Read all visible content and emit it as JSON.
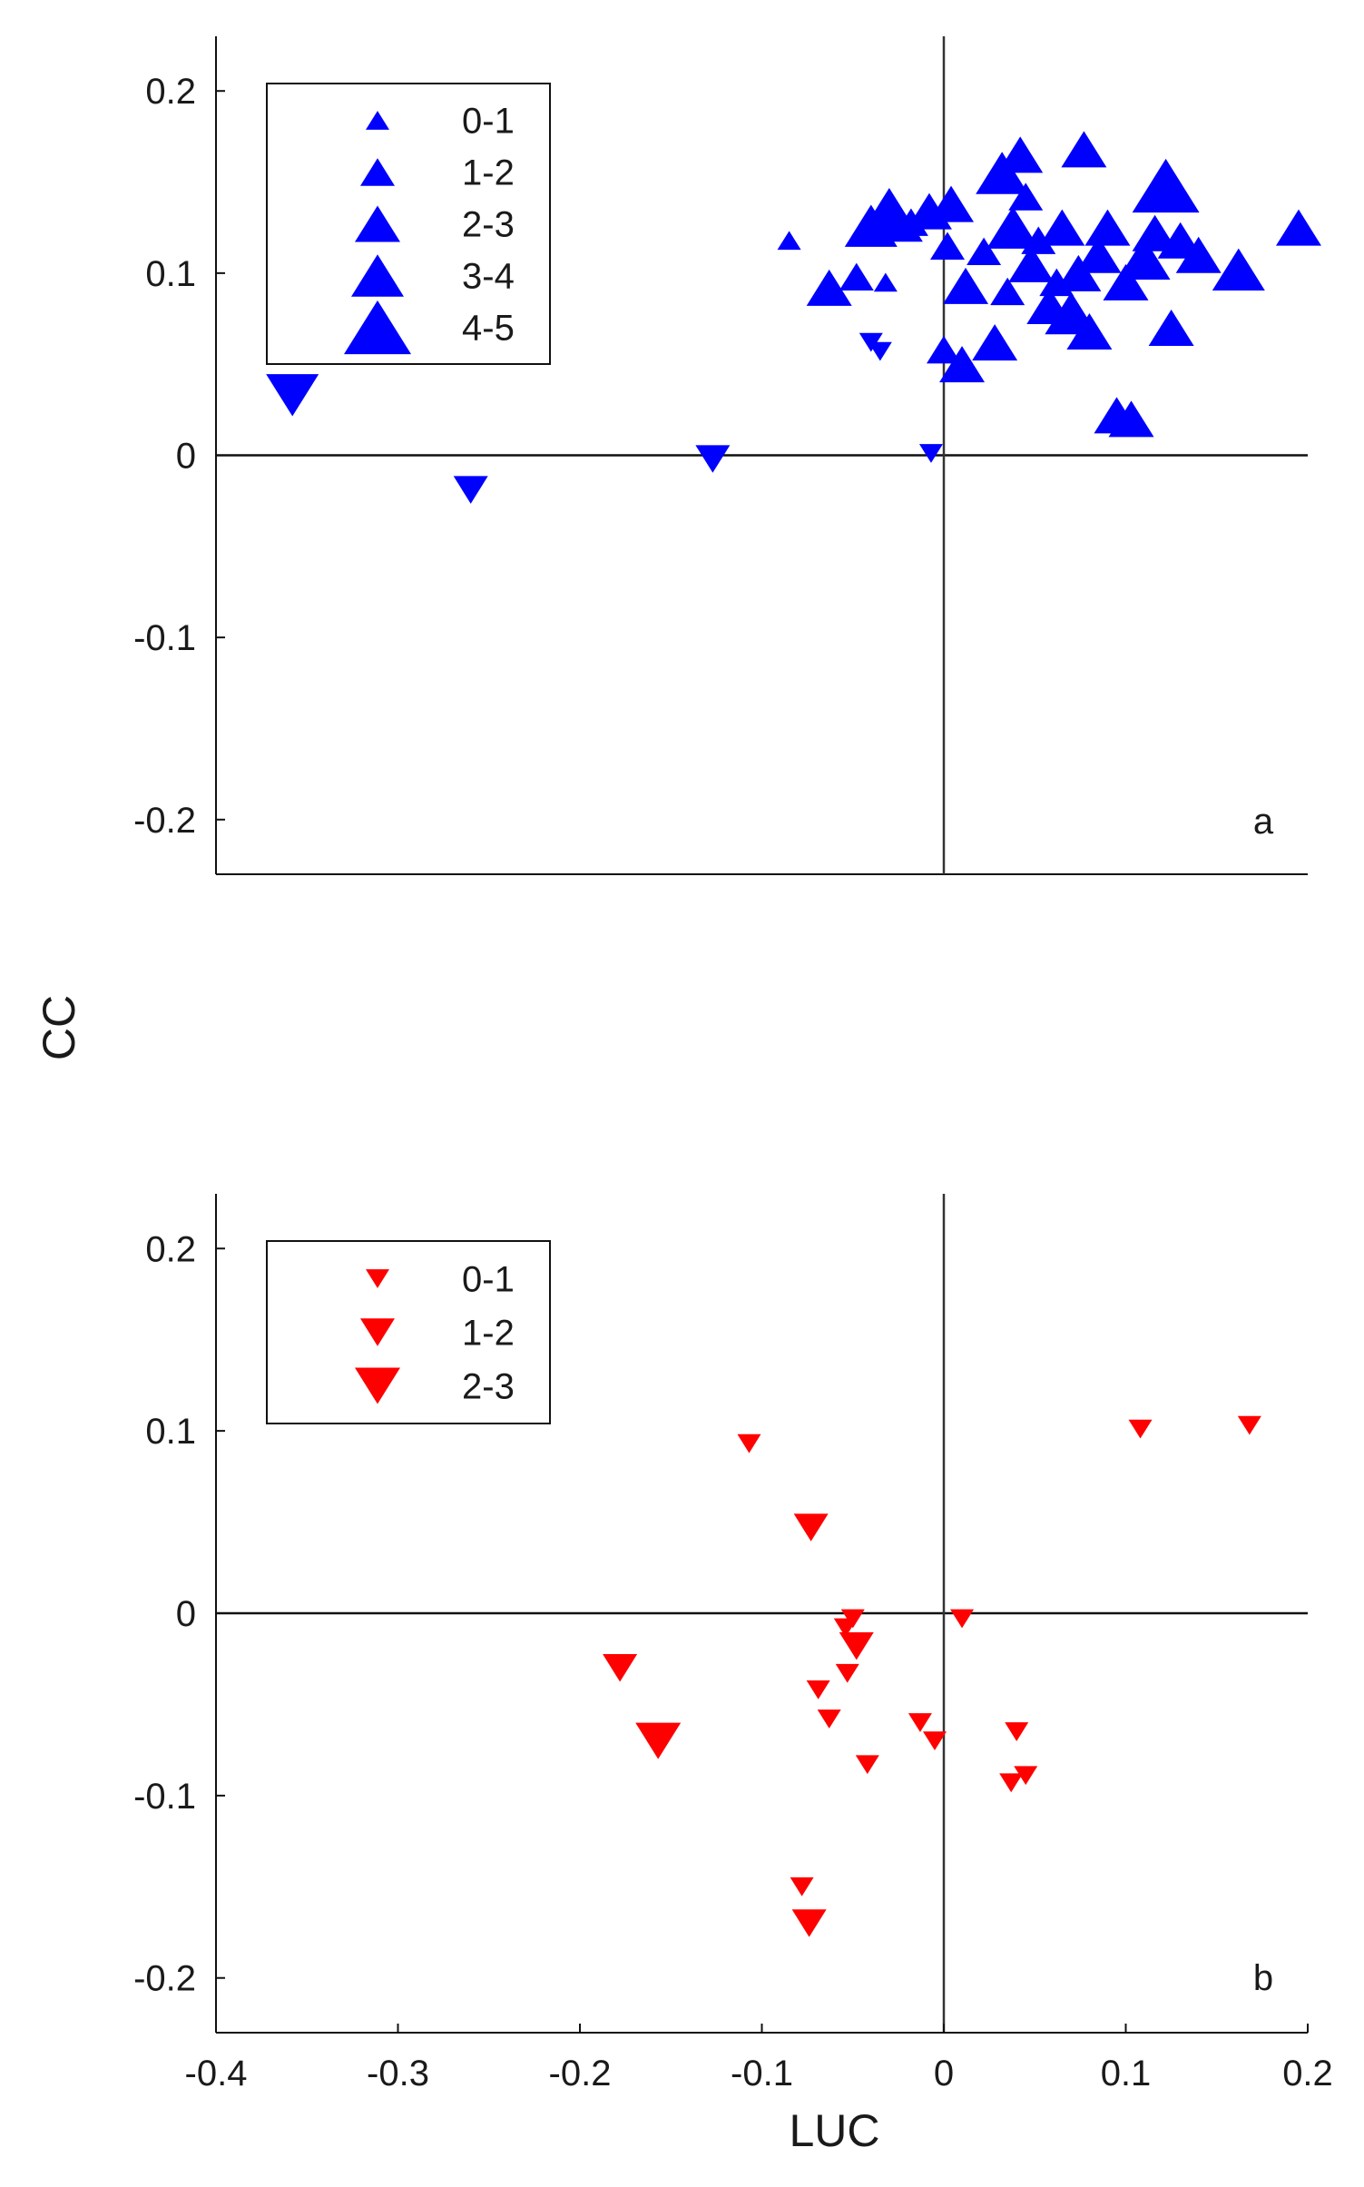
{
  "chart_data": [
    {
      "type": "scatter",
      "panel_label": "a",
      "color": "#0000ff",
      "xlim": [
        -0.4,
        0.2
      ],
      "ylim": [
        -0.23,
        0.23
      ],
      "yticks": [
        "0.2",
        "0.1",
        "0",
        "-0.1",
        "-0.2"
      ],
      "ytick_values": [
        0.2,
        0.1,
        0,
        -0.1,
        -0.2
      ],
      "grid": false,
      "legend_position": "top-left",
      "legend": [
        {
          "label": "0-1",
          "size_class": 1,
          "marker": "triangle-up"
        },
        {
          "label": "1-2",
          "size_class": 2,
          "marker": "triangle-up"
        },
        {
          "label": "2-3",
          "size_class": 3,
          "marker": "triangle-up"
        },
        {
          "label": "3-4",
          "size_class": 4,
          "marker": "triangle-up"
        },
        {
          "label": "4-5",
          "size_class": 5,
          "marker": "triangle-up"
        }
      ],
      "points": [
        {
          "x": -0.358,
          "y": 0.033,
          "size_class": 4,
          "marker": "down"
        },
        {
          "x": -0.26,
          "y": -0.019,
          "size_class": 2,
          "marker": "down"
        },
        {
          "x": -0.127,
          "y": -0.002,
          "size_class": 2,
          "marker": "down"
        },
        {
          "x": -0.007,
          "y": 0.001,
          "size_class": 1,
          "marker": "down"
        },
        {
          "x": -0.04,
          "y": 0.062,
          "size_class": 1,
          "marker": "down"
        },
        {
          "x": -0.035,
          "y": 0.057,
          "size_class": 1,
          "marker": "down"
        },
        {
          "x": -0.085,
          "y": 0.118,
          "size_class": 1,
          "marker": "up"
        },
        {
          "x": -0.063,
          "y": 0.092,
          "size_class": 3,
          "marker": "up"
        },
        {
          "x": -0.048,
          "y": 0.098,
          "size_class": 2,
          "marker": "up"
        },
        {
          "x": -0.032,
          "y": 0.095,
          "size_class": 1,
          "marker": "up"
        },
        {
          "x": -0.04,
          "y": 0.126,
          "size_class": 4,
          "marker": "up"
        },
        {
          "x": -0.03,
          "y": 0.132,
          "size_class": 5,
          "marker": "up"
        },
        {
          "x": -0.018,
          "y": 0.128,
          "size_class": 2,
          "marker": "up"
        },
        {
          "x": -0.008,
          "y": 0.134,
          "size_class": 3,
          "marker": "up"
        },
        {
          "x": 0.004,
          "y": 0.138,
          "size_class": 3,
          "marker": "up"
        },
        {
          "x": 0.002,
          "y": 0.115,
          "size_class": 2,
          "marker": "up"
        },
        {
          "x": 0.0,
          "y": 0.058,
          "size_class": 2,
          "marker": "up"
        },
        {
          "x": 0.01,
          "y": 0.05,
          "size_class": 3,
          "marker": "up"
        },
        {
          "x": 0.012,
          "y": 0.093,
          "size_class": 3,
          "marker": "up"
        },
        {
          "x": 0.022,
          "y": 0.112,
          "size_class": 2,
          "marker": "up"
        },
        {
          "x": 0.028,
          "y": 0.062,
          "size_class": 3,
          "marker": "up"
        },
        {
          "x": 0.032,
          "y": 0.155,
          "size_class": 4,
          "marker": "up"
        },
        {
          "x": 0.035,
          "y": 0.09,
          "size_class": 2,
          "marker": "up"
        },
        {
          "x": 0.038,
          "y": 0.125,
          "size_class": 4,
          "marker": "up"
        },
        {
          "x": 0.042,
          "y": 0.165,
          "size_class": 3,
          "marker": "up"
        },
        {
          "x": 0.045,
          "y": 0.142,
          "size_class": 2,
          "marker": "up"
        },
        {
          "x": 0.048,
          "y": 0.105,
          "size_class": 3,
          "marker": "up"
        },
        {
          "x": 0.052,
          "y": 0.118,
          "size_class": 2,
          "marker": "up"
        },
        {
          "x": 0.058,
          "y": 0.082,
          "size_class": 3,
          "marker": "up"
        },
        {
          "x": 0.062,
          "y": 0.095,
          "size_class": 2,
          "marker": "up"
        },
        {
          "x": 0.065,
          "y": 0.125,
          "size_class": 3,
          "marker": "up"
        },
        {
          "x": 0.07,
          "y": 0.078,
          "size_class": 4,
          "marker": "up"
        },
        {
          "x": 0.074,
          "y": 0.1,
          "size_class": 3,
          "marker": "up"
        },
        {
          "x": 0.077,
          "y": 0.168,
          "size_class": 3,
          "marker": "up"
        },
        {
          "x": 0.08,
          "y": 0.068,
          "size_class": 3,
          "marker": "up"
        },
        {
          "x": 0.085,
          "y": 0.11,
          "size_class": 3,
          "marker": "up"
        },
        {
          "x": 0.09,
          "y": 0.125,
          "size_class": 3,
          "marker": "up"
        },
        {
          "x": 0.095,
          "y": 0.022,
          "size_class": 3,
          "marker": "up"
        },
        {
          "x": 0.103,
          "y": 0.02,
          "size_class": 3,
          "marker": "up"
        },
        {
          "x": 0.1,
          "y": 0.095,
          "size_class": 3,
          "marker": "up"
        },
        {
          "x": 0.11,
          "y": 0.108,
          "size_class": 4,
          "marker": "up"
        },
        {
          "x": 0.116,
          "y": 0.122,
          "size_class": 3,
          "marker": "up"
        },
        {
          "x": 0.122,
          "y": 0.148,
          "size_class": 5,
          "marker": "up"
        },
        {
          "x": 0.125,
          "y": 0.07,
          "size_class": 3,
          "marker": "up"
        },
        {
          "x": 0.13,
          "y": 0.118,
          "size_class": 3,
          "marker": "up"
        },
        {
          "x": 0.14,
          "y": 0.11,
          "size_class": 3,
          "marker": "up"
        },
        {
          "x": 0.162,
          "y": 0.102,
          "size_class": 4,
          "marker": "up"
        },
        {
          "x": 0.195,
          "y": 0.125,
          "size_class": 3,
          "marker": "up"
        }
      ]
    },
    {
      "type": "scatter",
      "panel_label": "b",
      "color": "#ff0000",
      "xlim": [
        -0.4,
        0.2
      ],
      "ylim": [
        -0.23,
        0.23
      ],
      "xticks": [
        "-0.4",
        "-0.3",
        "-0.2",
        "-0.1",
        "0",
        "0.1",
        "0.2"
      ],
      "xtick_values": [
        -0.4,
        -0.3,
        -0.2,
        -0.1,
        0,
        0.1,
        0.2
      ],
      "yticks": [
        "0.2",
        "0.1",
        "0",
        "-0.1",
        "-0.2"
      ],
      "ytick_values": [
        0.2,
        0.1,
        0,
        -0.1,
        -0.2
      ],
      "xlabel": "LUC",
      "grid": false,
      "legend_position": "top-left",
      "legend": [
        {
          "label": "0-1",
          "size_class": 1,
          "marker": "triangle-down"
        },
        {
          "label": "1-2",
          "size_class": 2,
          "marker": "triangle-down"
        },
        {
          "label": "2-3",
          "size_class": 3,
          "marker": "triangle-down"
        }
      ],
      "points": [
        {
          "x": -0.107,
          "y": 0.093,
          "size_class": 1
        },
        {
          "x": -0.073,
          "y": 0.047,
          "size_class": 2
        },
        {
          "x": -0.178,
          "y": -0.03,
          "size_class": 2
        },
        {
          "x": -0.157,
          "y": -0.07,
          "size_class": 3
        },
        {
          "x": -0.05,
          "y": -0.003,
          "size_class": 1
        },
        {
          "x": -0.054,
          "y": -0.008,
          "size_class": 1
        },
        {
          "x": -0.048,
          "y": -0.018,
          "size_class": 2
        },
        {
          "x": -0.053,
          "y": -0.033,
          "size_class": 1
        },
        {
          "x": -0.069,
          "y": -0.042,
          "size_class": 1
        },
        {
          "x": -0.063,
          "y": -0.058,
          "size_class": 1
        },
        {
          "x": -0.042,
          "y": -0.083,
          "size_class": 1
        },
        {
          "x": -0.013,
          "y": -0.06,
          "size_class": 1
        },
        {
          "x": -0.005,
          "y": -0.07,
          "size_class": 1
        },
        {
          "x": 0.01,
          "y": -0.003,
          "size_class": 1
        },
        {
          "x": 0.04,
          "y": -0.065,
          "size_class": 1
        },
        {
          "x": 0.037,
          "y": -0.093,
          "size_class": 1
        },
        {
          "x": 0.045,
          "y": -0.089,
          "size_class": 1
        },
        {
          "x": -0.078,
          "y": -0.15,
          "size_class": 1
        },
        {
          "x": -0.074,
          "y": -0.17,
          "size_class": 2
        },
        {
          "x": 0.108,
          "y": 0.101,
          "size_class": 1
        },
        {
          "x": 0.168,
          "y": 0.103,
          "size_class": 1
        }
      ]
    }
  ],
  "shared_ylabel": "CC"
}
